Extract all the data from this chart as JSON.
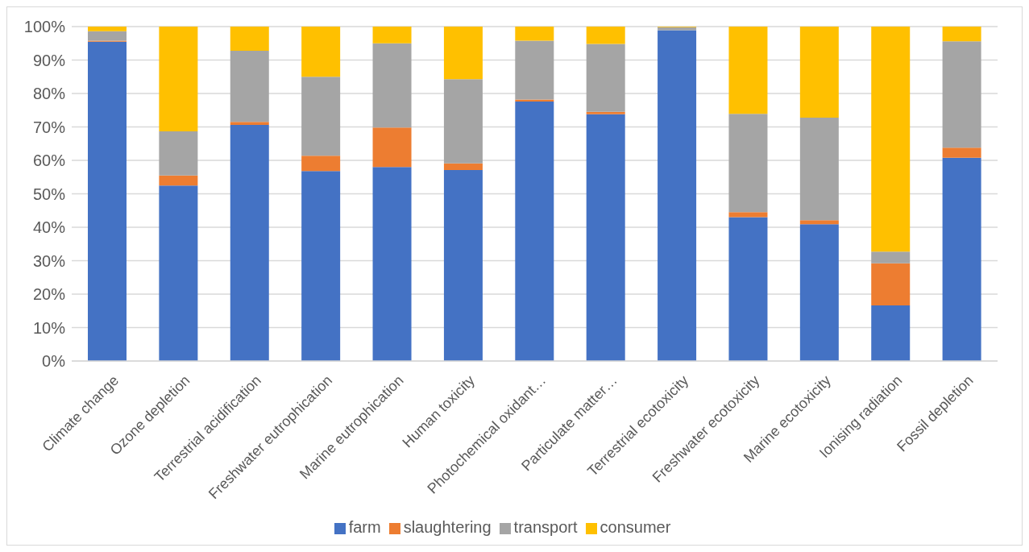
{
  "chart_data": {
    "type": "bar",
    "stacked": true,
    "categories": [
      "Climate change",
      "Ozone depletion",
      "Terrestrial acidification",
      "Freshwater eutrophication",
      "Marine eutrophication",
      "Human toxicity",
      "Photochemical oxidant…",
      "Particulate matter…",
      "Terrestrial ecotoxicity",
      "Freshwater ecotoxicity",
      "Marine ecotoxicity",
      "Ionising radiation",
      "Fossil depletion"
    ],
    "series": [
      {
        "name": "farm",
        "color": "#4472c4",
        "values": [
          95.5,
          52.5,
          70.6,
          56.8,
          58,
          57.1,
          77.6,
          73.8,
          98.9,
          43,
          40.9,
          16.6,
          60.8
        ]
      },
      {
        "name": "slaughtering",
        "color": "#ed7d31",
        "values": [
          0.3,
          3,
          0.9,
          4.6,
          11.8,
          2,
          0.6,
          0.7,
          0,
          1.5,
          1.2,
          12.6,
          3
        ]
      },
      {
        "name": "transport",
        "color": "#a5a5a5",
        "values": [
          2.8,
          13.2,
          21.3,
          23.6,
          25.2,
          25.2,
          17.6,
          20.3,
          0.9,
          29.4,
          30.7,
          3.5,
          31.8
        ]
      },
      {
        "name": "consumer",
        "color": "#ffc000",
        "values": [
          1.4,
          31.3,
          7.2,
          15,
          5,
          15.7,
          4.2,
          5.2,
          0.2,
          26.1,
          27.2,
          67.3,
          4.4
        ]
      }
    ],
    "ylim": [
      0,
      100
    ],
    "yticks": [
      {
        "value": 0,
        "label": "0%"
      },
      {
        "value": 10,
        "label": "10%"
      },
      {
        "value": 20,
        "label": "20%"
      },
      {
        "value": 30,
        "label": "30%"
      },
      {
        "value": 40,
        "label": "40%"
      },
      {
        "value": 50,
        "label": "50%"
      },
      {
        "value": 60,
        "label": "60%"
      },
      {
        "value": 70,
        "label": "70%"
      },
      {
        "value": 80,
        "label": "80%"
      },
      {
        "value": 90,
        "label": "90%"
      },
      {
        "value": 100,
        "label": "100%"
      }
    ],
    "grid": "y",
    "legend": "bottom"
  }
}
